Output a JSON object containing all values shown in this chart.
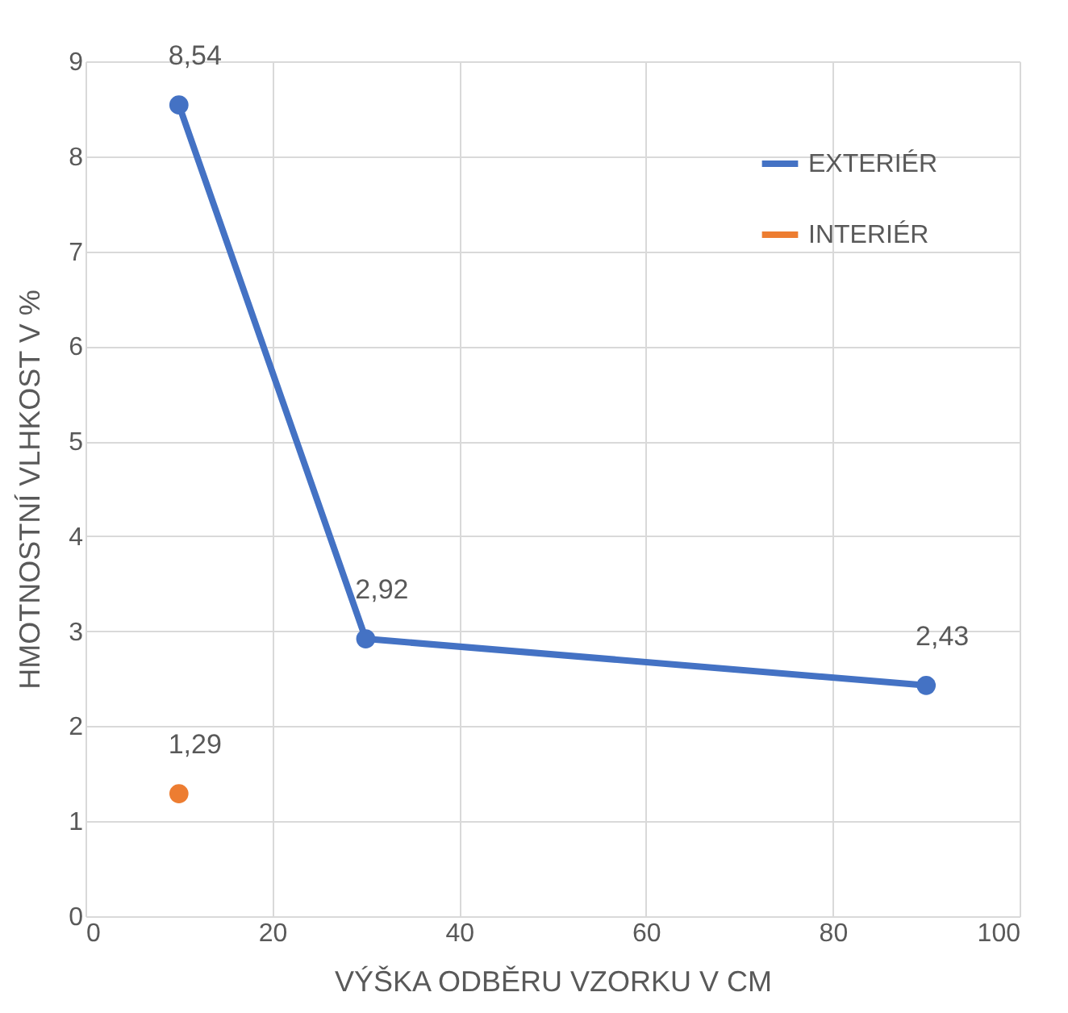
{
  "chart_data": {
    "type": "line",
    "xlabel": "VÝŠKA ODBĚRU VZORKU V CM",
    "ylabel": "HMOTNOSTNÍ VLHKOST V %",
    "xlim": [
      0,
      100
    ],
    "xticks": [
      0,
      20,
      40,
      60,
      80,
      100
    ],
    "ylim": [
      0,
      9
    ],
    "yticks": [
      0,
      1,
      2,
      3,
      4,
      5,
      6,
      7,
      8,
      9
    ],
    "grid": true,
    "legend": "top right",
    "marker": "circle",
    "line_style": "solid",
    "series": [
      {
        "name": "EXTERIÉR",
        "color": "#4472c4",
        "x": [
          10,
          30,
          90
        ],
        "values": [
          8.54,
          2.92,
          2.43
        ],
        "value_labels": [
          "8,54",
          "2,92",
          "2,43"
        ]
      },
      {
        "name": "INTERIÉR",
        "color": "#ed7d31",
        "x": [
          10
        ],
        "values": [
          1.29
        ],
        "value_labels": [
          "1,29"
        ]
      }
    ]
  }
}
